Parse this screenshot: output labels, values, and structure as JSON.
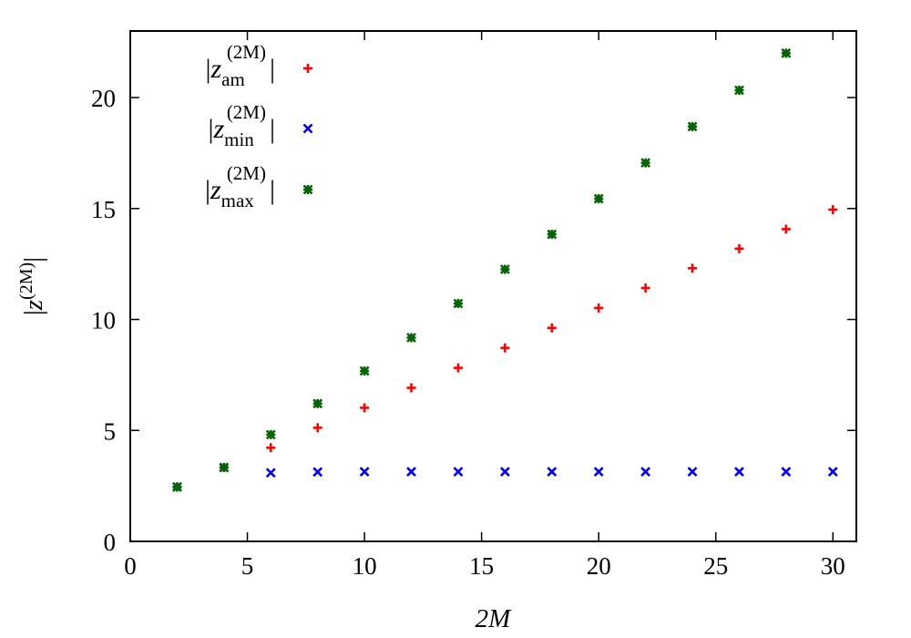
{
  "chart_data": {
    "type": "scatter",
    "title": "",
    "xlabel": "2M",
    "ylabel": "|z(2M)|",
    "xlim": [
      0,
      31
    ],
    "ylim": [
      0,
      23
    ],
    "xticks": [
      0,
      5,
      10,
      15,
      20,
      25,
      30
    ],
    "yticks": [
      0,
      5,
      10,
      15,
      20
    ],
    "grid": false,
    "legend_position": "top-left",
    "series": [
      {
        "name": "|z_am^(2M)|",
        "legend_var": "z",
        "legend_sub": "am",
        "legend_sup": "(2M)",
        "marker": "plus",
        "color": "#ff0000",
        "x": [
          2,
          4,
          6,
          8,
          10,
          12,
          14,
          16,
          18,
          20,
          22,
          24,
          26,
          28,
          30
        ],
        "y": [
          2.45,
          3.33,
          4.22,
          5.12,
          6.02,
          6.92,
          7.82,
          8.72,
          9.62,
          10.52,
          11.42,
          12.31,
          13.19,
          14.07,
          14.95
        ]
      },
      {
        "name": "|z_min^(2M)|",
        "legend_var": "z",
        "legend_sub": "min",
        "legend_sup": "(2M)",
        "marker": "cross",
        "color": "#0000ff",
        "x": [
          2,
          4,
          6,
          8,
          10,
          12,
          14,
          16,
          18,
          20,
          22,
          24,
          26,
          28,
          30
        ],
        "y": [
          2.45,
          3.33,
          3.09,
          3.13,
          3.14,
          3.14,
          3.14,
          3.14,
          3.14,
          3.14,
          3.14,
          3.14,
          3.14,
          3.14,
          3.14
        ]
      },
      {
        "name": "|z_max^(2M)|",
        "legend_var": "z",
        "legend_sub": "max",
        "legend_sup": "(2M)",
        "marker": "star",
        "color": "#006400",
        "x": [
          2,
          4,
          6,
          8,
          10,
          12,
          14,
          16,
          18,
          20,
          22,
          24,
          26,
          28
        ],
        "y": [
          2.45,
          3.33,
          4.81,
          6.21,
          7.68,
          9.18,
          10.72,
          12.26,
          13.84,
          15.44,
          17.06,
          18.69,
          20.33,
          22.0
        ]
      }
    ]
  }
}
